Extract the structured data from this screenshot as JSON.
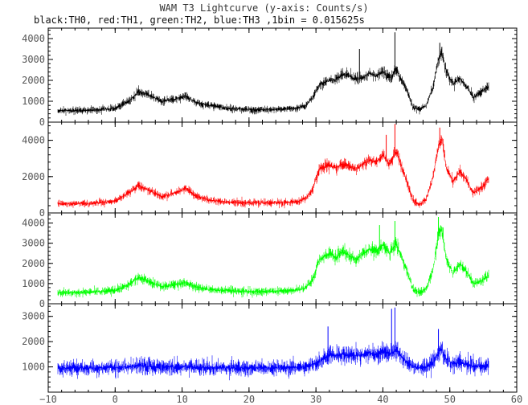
{
  "chart_data": {
    "type": "line",
    "title": "WAM T3 Lightcurve (y-axis: Counts/s)",
    "subtitle": "black:TH0, red:TH1, green:TH2, blue:TH3 ,1bin = 0.015625s",
    "xlim": [
      -10,
      60
    ],
    "x_ticks": [
      -10,
      0,
      10,
      20,
      30,
      40,
      50,
      60
    ],
    "x_tick_labels": [
      "−10",
      "0",
      "10",
      "20",
      "30",
      "40",
      "50",
      "60"
    ],
    "x_range": [
      -8.5,
      55.8
    ],
    "series": [
      {
        "name": "TH0",
        "color": "#000000",
        "ylim": [
          0,
          4500
        ],
        "yticks": [
          0,
          1000,
          2000,
          3000,
          4000
        ],
        "noise": 250,
        "spikes": [
          [
            41.8,
            4300
          ],
          [
            48.5,
            3800
          ],
          [
            36.5,
            3500
          ]
        ],
        "x": [
          -8.5,
          -4,
          0,
          2,
          3.5,
          5,
          7,
          9,
          10.5,
          12,
          14,
          17,
          20,
          24,
          27,
          28.5,
          29.5,
          30.5,
          32,
          33,
          34,
          35,
          36,
          37,
          38,
          39,
          40,
          41,
          42,
          42.8,
          43.5,
          44.5,
          45.5,
          46.5,
          47.5,
          48.3,
          48.8,
          49.5,
          50.5,
          51.5,
          52.5,
          53.5,
          54.5,
          55.8
        ],
        "values": [
          550,
          560,
          650,
          1000,
          1450,
          1300,
          1000,
          1100,
          1250,
          950,
          800,
          650,
          600,
          620,
          650,
          800,
          1150,
          1800,
          2000,
          2050,
          2300,
          2200,
          2050,
          2100,
          2350,
          2200,
          2450,
          2100,
          2500,
          2000,
          1600,
          700,
          600,
          800,
          1700,
          3000,
          3300,
          2400,
          1800,
          2100,
          1700,
          1200,
          1400,
          1700
        ]
      },
      {
        "name": "TH1",
        "color": "#ff0000",
        "ylim": [
          0,
          5000
        ],
        "yticks": [
          0,
          2000,
          4000
        ],
        "noise": 300,
        "spikes": [
          [
            41.8,
            4900
          ],
          [
            48.5,
            4700
          ],
          [
            40.5,
            4300
          ]
        ],
        "x": [
          -8.5,
          -4,
          0,
          2,
          3.5,
          5,
          7,
          9,
          10.5,
          12,
          14,
          17,
          20,
          24,
          27,
          28.5,
          29.5,
          30.5,
          32,
          33,
          34,
          35,
          36,
          37,
          38,
          39,
          40,
          41,
          42,
          42.8,
          43.5,
          44.5,
          45.5,
          46.5,
          47.5,
          48.3,
          48.8,
          49.5,
          50.5,
          51.5,
          52.5,
          53.5,
          54.5,
          55.8
        ],
        "values": [
          500,
          520,
          650,
          1100,
          1500,
          1250,
          900,
          1100,
          1350,
          950,
          700,
          600,
          550,
          570,
          600,
          800,
          1300,
          2400,
          2600,
          2500,
          2700,
          2600,
          2400,
          2700,
          2900,
          2800,
          3200,
          2700,
          3400,
          2600,
          1800,
          700,
          450,
          800,
          2000,
          3700,
          4100,
          2500,
          1700,
          2300,
          1800,
          1100,
          1300,
          1900
        ]
      },
      {
        "name": "TH2",
        "color": "#00ff00",
        "ylim": [
          0,
          4500
        ],
        "yticks": [
          0,
          1000,
          2000,
          3000,
          4000
        ],
        "noise": 300,
        "spikes": [
          [
            41.8,
            4100
          ],
          [
            48.3,
            4300
          ],
          [
            39.5,
            3900
          ]
        ],
        "x": [
          -8.5,
          -4,
          0,
          2,
          3.5,
          5,
          7,
          9,
          10.5,
          12,
          14,
          17,
          20,
          24,
          27,
          28.5,
          29.5,
          30.5,
          32,
          33,
          34,
          35,
          36,
          37,
          38,
          39,
          40,
          41,
          42,
          42.8,
          43.5,
          44.5,
          45.5,
          46.5,
          47.5,
          48.3,
          48.8,
          49.5,
          50.5,
          51.5,
          52.5,
          53.5,
          54.5,
          55.8
        ],
        "values": [
          550,
          580,
          650,
          950,
          1300,
          1100,
          850,
          950,
          1050,
          850,
          700,
          650,
          600,
          620,
          650,
          800,
          1200,
          2200,
          2500,
          2300,
          2600,
          2400,
          2200,
          2500,
          2700,
          2600,
          2900,
          2500,
          3000,
          2300,
          1700,
          700,
          550,
          750,
          1700,
          3400,
          3700,
          2200,
          1500,
          2000,
          1600,
          1000,
          1100,
          1400
        ]
      },
      {
        "name": "TH3",
        "color": "#0000ff",
        "ylim": [
          0,
          3500
        ],
        "yticks": [
          1000,
          2000,
          3000
        ],
        "noise": 380,
        "spikes": [
          [
            41.8,
            3350
          ],
          [
            41.3,
            3300
          ],
          [
            31.8,
            2600
          ],
          [
            48.3,
            2500
          ]
        ],
        "x": [
          -8.5,
          -4,
          0,
          2,
          3.5,
          5,
          7,
          9,
          10.5,
          12,
          14,
          17,
          20,
          24,
          27,
          28.5,
          29.5,
          30.5,
          32,
          33,
          34,
          35,
          36,
          37,
          38,
          39,
          40,
          41,
          42,
          42.8,
          43.5,
          44.5,
          45.5,
          46.5,
          47.5,
          48.3,
          48.8,
          49.5,
          50.5,
          51.5,
          52.5,
          53.5,
          54.5,
          55.8
        ],
        "values": [
          950,
          960,
          980,
          1000,
          1050,
          1020,
          990,
          1000,
          1020,
          990,
          970,
          960,
          960,
          960,
          970,
          1000,
          1100,
          1200,
          1500,
          1450,
          1500,
          1450,
          1450,
          1500,
          1550,
          1500,
          1600,
          1500,
          1700,
          1400,
          1200,
          1000,
          960,
          1000,
          1150,
          1600,
          1700,
          1300,
          1100,
          1200,
          1100,
          1000,
          1050,
          1000
        ]
      }
    ]
  }
}
